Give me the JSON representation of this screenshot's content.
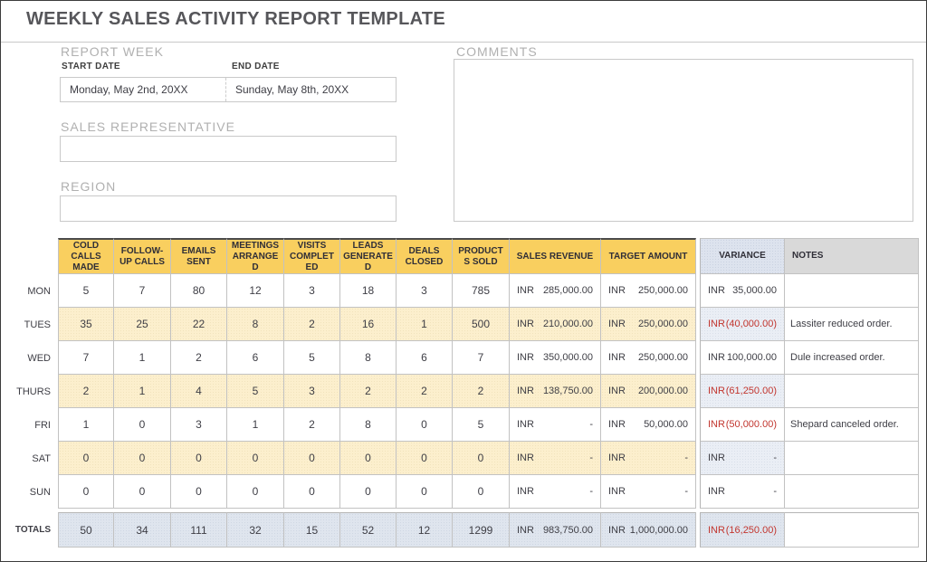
{
  "page_title": "WEEKLY SALES ACTIVITY REPORT TEMPLATE",
  "report_week": {
    "section_label": "REPORT WEEK",
    "start_date": {
      "label": "START DATE",
      "value": "Monday, May 2nd, 20XX"
    },
    "end_date": {
      "label": "END DATE",
      "value": "Sunday, May 8th, 20XX"
    }
  },
  "sales_representative": {
    "label": "SALES REPRESENTATIVE",
    "value": ""
  },
  "region": {
    "label": "REGION",
    "value": ""
  },
  "comments": {
    "label": "COMMENTS",
    "value": ""
  },
  "table": {
    "columns": [
      {
        "key": "cold-calls-made",
        "label": "COLD CALLS MADE"
      },
      {
        "key": "follow-up-calls",
        "label": "FOLLOW-UP CALLS"
      },
      {
        "key": "emails-sent",
        "label": "EMAILS SENT"
      },
      {
        "key": "meetings-arranged",
        "label": "MEETINGS ARRANGED"
      },
      {
        "key": "visits-completed",
        "label": "VISITS COMPLETED"
      },
      {
        "key": "leads-generated",
        "label": "LEADS GENERATED"
      },
      {
        "key": "deals-closed",
        "label": "DEALS CLOSED"
      },
      {
        "key": "products-sold",
        "label": "PRODUCTS SOLD"
      },
      {
        "key": "sales-revenue",
        "label": "SALES REVENUE"
      },
      {
        "key": "target-amount",
        "label": "TARGET AMOUNT"
      },
      {
        "key": "variance",
        "label": "VARIANCE"
      },
      {
        "key": "notes",
        "label": "NOTES"
      }
    ],
    "rows": [
      {
        "day": "MON",
        "band": "plain",
        "counts": [
          "5",
          "7",
          "80",
          "12",
          "3",
          "18",
          "3",
          "785"
        ],
        "revenue": {
          "cur": "INR",
          "amt": "285,000.00"
        },
        "target": {
          "cur": "INR",
          "amt": "250,000.00"
        },
        "variance": {
          "cur": "INR",
          "amt": "35,000.00",
          "negative": false
        },
        "notes": ""
      },
      {
        "day": "TUES",
        "band": "cream",
        "counts": [
          "35",
          "25",
          "22",
          "8",
          "2",
          "16",
          "1",
          "500"
        ],
        "revenue": {
          "cur": "INR",
          "amt": "210,000.00"
        },
        "target": {
          "cur": "INR",
          "amt": "250,000.00"
        },
        "variance": {
          "cur": "INR",
          "amt": "(40,000.00)",
          "negative": true
        },
        "notes": "Lassiter reduced order."
      },
      {
        "day": "WED",
        "band": "plain",
        "counts": [
          "7",
          "1",
          "2",
          "6",
          "5",
          "8",
          "6",
          "7"
        ],
        "revenue": {
          "cur": "INR",
          "amt": "350,000.00"
        },
        "target": {
          "cur": "INR",
          "amt": "250,000.00"
        },
        "variance": {
          "cur": "INR",
          "amt": "100,000.00",
          "negative": false
        },
        "notes": "Dule increased order."
      },
      {
        "day": "THURS",
        "band": "cream",
        "counts": [
          "2",
          "1",
          "4",
          "5",
          "3",
          "2",
          "2",
          "2"
        ],
        "revenue": {
          "cur": "INR",
          "amt": "138,750.00"
        },
        "target": {
          "cur": "INR",
          "amt": "200,000.00"
        },
        "variance": {
          "cur": "INR",
          "amt": "(61,250.00)",
          "negative": true
        },
        "notes": ""
      },
      {
        "day": "FRI",
        "band": "plain",
        "counts": [
          "1",
          "0",
          "3",
          "1",
          "2",
          "8",
          "0",
          "5"
        ],
        "revenue": {
          "cur": "INR",
          "amt": "-"
        },
        "target": {
          "cur": "INR",
          "amt": "50,000.00"
        },
        "variance": {
          "cur": "INR",
          "amt": "(50,000.00)",
          "negative": true
        },
        "notes": "Shepard canceled order."
      },
      {
        "day": "SAT",
        "band": "cream",
        "counts": [
          "0",
          "0",
          "0",
          "0",
          "0",
          "0",
          "0",
          "0"
        ],
        "revenue": {
          "cur": "INR",
          "amt": "-"
        },
        "target": {
          "cur": "INR",
          "amt": "-"
        },
        "variance": {
          "cur": "INR",
          "amt": "-",
          "negative": false
        },
        "notes": ""
      },
      {
        "day": "SUN",
        "band": "plain",
        "counts": [
          "0",
          "0",
          "0",
          "0",
          "0",
          "0",
          "0",
          "0"
        ],
        "revenue": {
          "cur": "INR",
          "amt": "-"
        },
        "target": {
          "cur": "INR",
          "amt": "-"
        },
        "variance": {
          "cur": "INR",
          "amt": "-",
          "negative": false
        },
        "notes": ""
      },
      {
        "day": "TOTALS",
        "band": "totals",
        "counts": [
          "50",
          "34",
          "111",
          "32",
          "15",
          "52",
          "12",
          "1299"
        ],
        "revenue": {
          "cur": "INR",
          "amt": "983,750.00"
        },
        "target": {
          "cur": "INR",
          "amt": "1,000,000.00"
        },
        "variance": {
          "cur": "INR",
          "amt": "(16,250.00)",
          "negative": true
        },
        "notes": ""
      }
    ]
  },
  "colors": {
    "header_gold": "#f9cf5f",
    "row_cream": "#fcefcd",
    "variance_blue": "#eaeef5",
    "totals_blue": "#dfe5ee",
    "variance_header": "#dde3ee",
    "notes_header": "#d9d9d9",
    "negative_red": "#c2362f",
    "title_gray": "#56565a"
  }
}
